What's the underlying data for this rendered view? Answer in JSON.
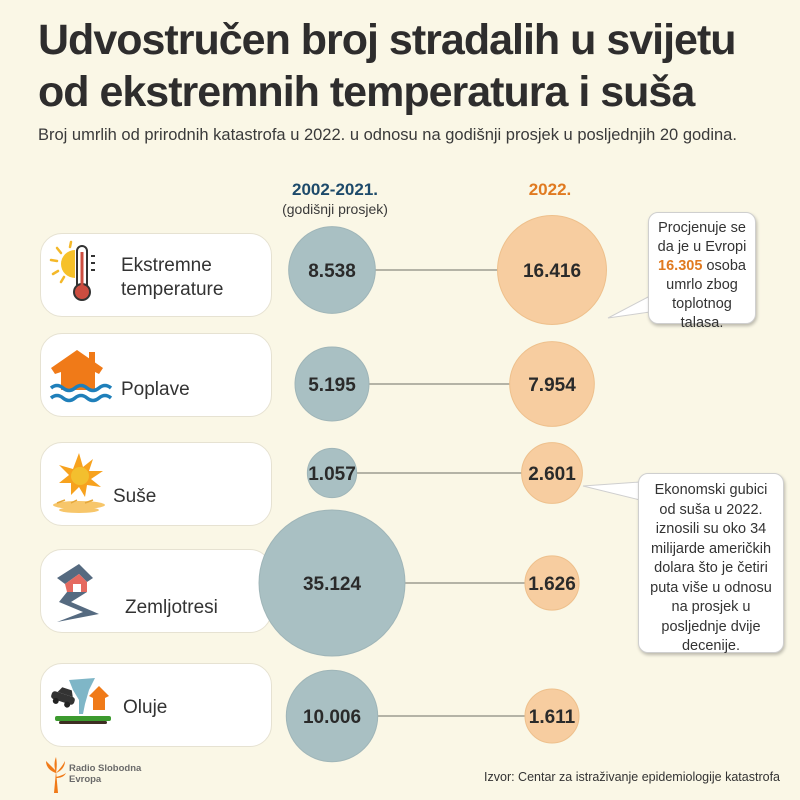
{
  "title_lines": [
    "Udvostručen broj stradalih u svijetu",
    "od ekstremnih temperatura i suša"
  ],
  "subtitle": "Broj umrlih od prirodnih katastrofa u 2022. u odnosu na godišnji prosjek u posljednjih 20 godina.",
  "columns": {
    "left": {
      "year": "2002-2021.",
      "note": "(godišnji prosjek)",
      "color": "#1d4a6a"
    },
    "right": {
      "year": "2022.",
      "color": "#e07a20"
    }
  },
  "chart_data": {
    "type": "bubble-comparison",
    "title": "Udvostručen broj stradalih u svijetu od ekstremnih temperatura i suša",
    "subtitle": "Broj umrlih od prirodnih katastrofa u 2022. u odnosu na godišnji prosjek u posljednjih 20 godina.",
    "categories": [
      "Ekstremne temperature",
      "Poplave",
      "Suše",
      "Zemljotresi",
      "Oluje"
    ],
    "series": [
      {
        "name": "2002-2021. (godišnji prosjek)",
        "color": "#a9c0c3",
        "values": [
          8538,
          5195,
          1057,
          35124,
          10006
        ],
        "labels": [
          "8.538",
          "5.195",
          "1.057",
          "35.124",
          "10.006"
        ]
      },
      {
        "name": "2022.",
        "color": "#f7cda0",
        "values": [
          16416,
          7954,
          2601,
          1626,
          1611
        ],
        "labels": [
          "16.416",
          "7.954",
          "2.601",
          "1.626",
          "1.611"
        ]
      }
    ]
  },
  "categories": [
    {
      "label_lines": [
        "Ekstremne",
        "temperature"
      ],
      "icon": "thermometer-sun-icon"
    },
    {
      "label_lines": [
        "Poplave"
      ],
      "icon": "flooded-house-icon"
    },
    {
      "label_lines": [
        "Suše"
      ],
      "icon": "drought-sun-icon"
    },
    {
      "label_lines": [
        "Zemljotresi"
      ],
      "icon": "earthquake-icon"
    },
    {
      "label_lines": [
        "Oluje"
      ],
      "icon": "storm-tornado-icon"
    }
  ],
  "callouts": {
    "heat": {
      "before": "Procjenuje se da je u Evropi",
      "highlight": "16.305",
      "after": "osoba umrlo zbog toplotnog talasa."
    },
    "drought": {
      "text": "Ekonomski gubici od suša u 2022. iznosili su oko 34 milijarde američkih dolara što je četiri puta više u odnosu na prosjek u posljednje dvije decenije."
    }
  },
  "source": "Izvor: Centar za istraživanje epidemiologije katastrofa",
  "logo": {
    "line1": "Radio Slobodna",
    "line2": "Evropa"
  }
}
